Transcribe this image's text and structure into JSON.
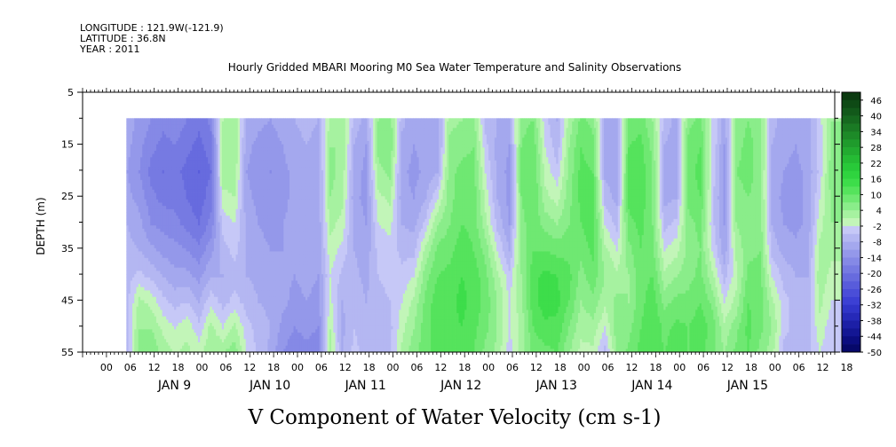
{
  "header": {
    "longitude": "LONGITUDE : 121.9W(-121.9)",
    "latitude": "LATITUDE : 36.8N",
    "year": "YEAR : 2011"
  },
  "chart_data": {
    "type": "heatmap",
    "title": "Hourly Gridded MBARI Mooring M0 Sea Water Temperature and Salinity Observations",
    "xlabel": "V Component of Water Velocity (cm s-1)",
    "ylabel": "DEPTH (m)",
    "ylim": [
      5,
      55
    ],
    "y_inverted": true,
    "y_ticks": [
      5,
      15,
      25,
      35,
      45,
      55
    ],
    "x_range_hours": [
      -24,
      165
    ],
    "data_extent": {
      "x_hours": [
        -13,
        164
      ],
      "depth_m": [
        10,
        55
      ]
    },
    "x_hour_labels": [
      "00",
      "06",
      "12",
      "18",
      "00",
      "06",
      "12",
      "18",
      "00",
      "06",
      "12",
      "18",
      "00",
      "06",
      "12",
      "18",
      "00",
      "06",
      "12",
      "18",
      "00",
      "06",
      "12",
      "18",
      "00",
      "06",
      "12",
      "18",
      "00",
      "06",
      "12",
      "18"
    ],
    "x_day_labels": [
      "JAN 9",
      "JAN 10",
      "JAN 11",
      "JAN 12",
      "JAN 13",
      "JAN 14",
      "JAN 15"
    ],
    "colorbar": {
      "labels": [
        "46",
        "40",
        "34",
        "28",
        "22",
        "16",
        "10",
        "4",
        "-2",
        "-8",
        "-14",
        "-20",
        "-26",
        "-32",
        "-38",
        "-44",
        "-50"
      ],
      "levels": [
        49,
        46,
        43,
        40,
        37,
        34,
        31,
        28,
        25,
        22,
        19,
        16,
        13,
        10,
        7,
        4,
        1,
        -2,
        -5,
        -8,
        -11,
        -14,
        -17,
        -20,
        -23,
        -26,
        -29,
        -32,
        -35,
        -38,
        -41,
        -44,
        -47,
        -50
      ],
      "colors": [
        "#0b3a10",
        "#0e4a15",
        "#12591a",
        "#16691f",
        "#1a7a24",
        "#1d8a28",
        "#1f9b2c",
        "#22ab30",
        "#25bb34",
        "#28c939",
        "#2fd43f",
        "#3ddd4a",
        "#55e35c",
        "#6fe872",
        "#8aed8a",
        "#a6f2a0",
        "#c2f5b8",
        "#c6c8f7",
        "#b4b7f2",
        "#a4a8ee",
        "#9498ea",
        "#8589e6",
        "#767ae2",
        "#676bde",
        "#585cdb",
        "#4a4ed8",
        "#3c40d4",
        "#3034c8",
        "#2629b8",
        "#1c1fa6",
        "#131694",
        "#0b0d80",
        "#06086a"
      ]
    },
    "columns_hours": [
      -13,
      -10,
      -7,
      -4,
      -1,
      2,
      5,
      8,
      11,
      14,
      17,
      20,
      23,
      26,
      29,
      32,
      35,
      38,
      41,
      44,
      47,
      50,
      53,
      56,
      59,
      62,
      65,
      68,
      71,
      74,
      77,
      80,
      83,
      86,
      89,
      92,
      95,
      98,
      101,
      104,
      107,
      110,
      113,
      116,
      119,
      122,
      125,
      128,
      131,
      134,
      137,
      140,
      143,
      146,
      149,
      152,
      155,
      158,
      161,
      164
    ],
    "rows_depth_m": [
      10,
      15,
      20,
      25,
      30,
      35,
      40,
      45,
      50,
      55
    ],
    "values_grid_cm_s": [
      [
        -9,
        -10,
        -11,
        -10,
        -8,
        -7,
        -6,
        -6,
        -5,
        -6
      ],
      [
        -12,
        -13,
        -14,
        -12,
        -10,
        -8,
        -4,
        2,
        4,
        6
      ],
      [
        -14,
        -16,
        -18,
        -16,
        -14,
        -10,
        -6,
        0,
        4,
        7
      ],
      [
        -16,
        -18,
        -20,
        -18,
        -15,
        -12,
        -8,
        -4,
        0,
        3
      ],
      [
        -15,
        -17,
        -19,
        -18,
        -16,
        -13,
        -10,
        -6,
        -2,
        1
      ],
      [
        -17,
        -19,
        -21,
        -20,
        -18,
        -14,
        -10,
        -5,
        0,
        2
      ],
      [
        -19,
        -21,
        -23,
        -22,
        -20,
        -16,
        -12,
        -8,
        -4,
        0
      ],
      [
        -16,
        -18,
        -20,
        -18,
        -16,
        -12,
        -8,
        -3,
        2,
        4
      ],
      [
        1,
        2,
        3,
        0,
        -4,
        -6,
        -8,
        -6,
        -2,
        4
      ],
      [
        3,
        4,
        3,
        1,
        -2,
        -4,
        -6,
        -4,
        2,
        6
      ],
      [
        -8,
        -10,
        -11,
        -10,
        -9,
        -8,
        -8,
        -6,
        -4,
        -2
      ],
      [
        -10,
        -12,
        -13,
        -12,
        -11,
        -10,
        -9,
        -8,
        -6,
        -6
      ],
      [
        -11,
        -13,
        -14,
        -13,
        -12,
        -11,
        -10,
        -9,
        -8,
        -9
      ],
      [
        -9,
        -11,
        -12,
        -12,
        -11,
        -11,
        -10,
        -10,
        -12,
        -14
      ],
      [
        -8,
        -9,
        -10,
        -10,
        -10,
        -10,
        -11,
        -12,
        -14,
        -16
      ],
      [
        -7,
        -8,
        -9,
        -9,
        -9,
        -9,
        -10,
        -11,
        -13,
        -15
      ],
      [
        -8,
        -9,
        -10,
        -10,
        -10,
        -10,
        -11,
        -12,
        -14,
        -16
      ],
      [
        2,
        4,
        5,
        4,
        2,
        0,
        -2,
        -1,
        1,
        3
      ],
      [
        3,
        4,
        3,
        2,
        0,
        -3,
        -6,
        -8,
        -9,
        -8
      ],
      [
        -6,
        -8,
        -9,
        -10,
        -9,
        -8,
        -7,
        -6,
        -5,
        -4
      ],
      [
        -9,
        -11,
        -12,
        -12,
        -11,
        -10,
        -9,
        -8,
        -7,
        -6
      ],
      [
        4,
        5,
        3,
        0,
        -2,
        -4,
        -5,
        -6,
        -6,
        -5
      ],
      [
        6,
        7,
        5,
        2,
        -1,
        -3,
        -4,
        -5,
        -6,
        -6
      ],
      [
        -7,
        -9,
        -10,
        -10,
        -8,
        -6,
        -4,
        -2,
        0,
        2
      ],
      [
        -10,
        -11,
        -12,
        -11,
        -9,
        -6,
        -2,
        2,
        4,
        6
      ],
      [
        -9,
        -10,
        -10,
        -8,
        -4,
        2,
        6,
        8,
        9,
        9
      ],
      [
        -10,
        -10,
        -8,
        -2,
        4,
        8,
        10,
        12,
        12,
        11
      ],
      [
        3,
        5,
        6,
        6,
        7,
        9,
        11,
        12,
        12,
        11
      ],
      [
        4,
        6,
        8,
        9,
        10,
        12,
        13,
        14,
        13,
        12
      ],
      [
        5,
        7,
        8,
        9,
        9,
        10,
        12,
        12,
        11,
        10
      ],
      [
        -6,
        -4,
        -2,
        0,
        2,
        6,
        8,
        9,
        8,
        6
      ],
      [
        -8,
        -9,
        -9,
        -8,
        -6,
        -2,
        2,
        4,
        4,
        3
      ],
      [
        -9,
        -11,
        -12,
        -12,
        -11,
        -8,
        -4,
        -2,
        -2,
        -4
      ],
      [
        6,
        7,
        8,
        7,
        6,
        5,
        4,
        3,
        2,
        2
      ],
      [
        7,
        9,
        10,
        10,
        9,
        10,
        12,
        12,
        10,
        8
      ],
      [
        -4,
        -2,
        0,
        2,
        6,
        10,
        14,
        15,
        12,
        9
      ],
      [
        -8,
        -7,
        -4,
        0,
        4,
        9,
        13,
        14,
        12,
        10
      ],
      [
        2,
        4,
        5,
        6,
        7,
        9,
        11,
        10,
        7,
        4
      ],
      [
        8,
        10,
        11,
        11,
        10,
        8,
        6,
        4,
        2,
        0
      ],
      [
        6,
        8,
        10,
        11,
        12,
        11,
        9,
        6,
        3,
        0
      ],
      [
        -9,
        -10,
        -9,
        -6,
        -2,
        2,
        4,
        2,
        -2,
        -6
      ],
      [
        -8,
        -9,
        -10,
        -9,
        -6,
        -2,
        2,
        5,
        6,
        4
      ],
      [
        8,
        10,
        11,
        11,
        9,
        6,
        4,
        4,
        6,
        8
      ],
      [
        9,
        11,
        12,
        12,
        11,
        10,
        9,
        9,
        10,
        11
      ],
      [
        4,
        6,
        7,
        7,
        7,
        8,
        10,
        12,
        13,
        12
      ],
      [
        -6,
        -8,
        -9,
        -9,
        -6,
        -2,
        2,
        6,
        9,
        10
      ],
      [
        -9,
        -10,
        -10,
        -8,
        -4,
        0,
        4,
        8,
        11,
        12
      ],
      [
        6,
        8,
        9,
        8,
        6,
        5,
        6,
        8,
        10,
        10
      ],
      [
        8,
        10,
        11,
        10,
        8,
        7,
        8,
        10,
        12,
        11
      ],
      [
        -2,
        -2,
        -3,
        -4,
        -4,
        -2,
        2,
        6,
        9,
        8
      ],
      [
        -10,
        -11,
        -12,
        -12,
        -11,
        -10,
        -6,
        -2,
        2,
        4
      ],
      [
        5,
        6,
        7,
        6,
        4,
        2,
        0,
        2,
        6,
        8
      ],
      [
        7,
        8,
        8,
        7,
        6,
        6,
        8,
        10,
        11,
        10
      ],
      [
        5,
        6,
        6,
        6,
        6,
        7,
        8,
        9,
        8,
        6
      ],
      [
        -7,
        -8,
        -9,
        -9,
        -8,
        -6,
        -2,
        2,
        4,
        2
      ],
      [
        -9,
        -10,
        -11,
        -12,
        -11,
        -9,
        -6,
        -4,
        -4,
        -6
      ],
      [
        -10,
        -11,
        -12,
        -12,
        -12,
        -10,
        -8,
        -6,
        -6,
        -8
      ],
      [
        -9,
        -9,
        -10,
        -10,
        -10,
        -9,
        -8,
        -7,
        -6,
        -6
      ],
      [
        -3,
        -4,
        -4,
        -2,
        0,
        2,
        3,
        2,
        0,
        -2
      ],
      [
        4,
        5,
        6,
        5,
        4,
        2,
        0,
        -2,
        -4,
        -5
      ]
    ]
  }
}
